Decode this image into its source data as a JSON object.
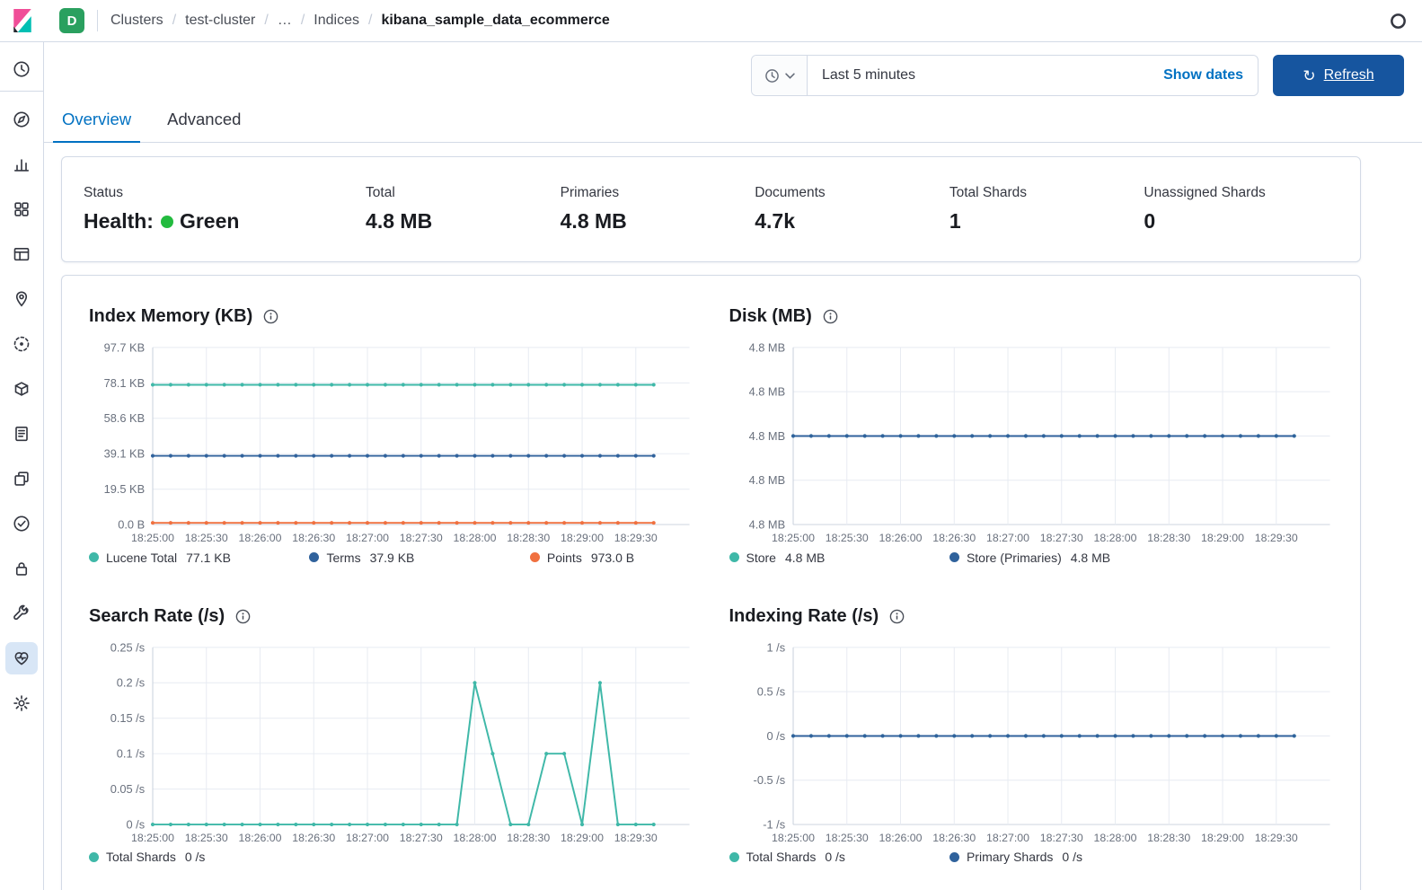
{
  "colors": {
    "accent": "#0071c2",
    "refresh_button": "#16559f",
    "space_badge": "#2aa05f",
    "health_green": "#23bb3f"
  },
  "header": {
    "space_badge": "D",
    "breadcrumbs": [
      {
        "label": "Clusters"
      },
      {
        "label": "test-cluster"
      },
      {
        "label": "…"
      },
      {
        "label": "Indices"
      },
      {
        "label": "kibana_sample_data_ecommerce",
        "current": true
      }
    ]
  },
  "sidebar": {
    "items": [
      {
        "id": "recently-viewed",
        "icon": "clock",
        "divider_after": true
      },
      {
        "id": "discover",
        "icon": "compass"
      },
      {
        "id": "visualize",
        "icon": "bar-chart"
      },
      {
        "id": "dashboard",
        "icon": "grid"
      },
      {
        "id": "canvas",
        "icon": "canvas"
      },
      {
        "id": "maps",
        "icon": "map-pin"
      },
      {
        "id": "machine-learning",
        "icon": "ml"
      },
      {
        "id": "apm",
        "icon": "package"
      },
      {
        "id": "logs",
        "icon": "document"
      },
      {
        "id": "metrics",
        "icon": "windows"
      },
      {
        "id": "uptime",
        "icon": "check-circle"
      },
      {
        "id": "security",
        "icon": "lock"
      },
      {
        "id": "dev-tools",
        "icon": "wrench"
      },
      {
        "id": "stack-monitoring",
        "icon": "pulse",
        "active": true
      },
      {
        "id": "management",
        "icon": "gear"
      }
    ]
  },
  "timebar": {
    "time_range": "Last 5 minutes",
    "show_dates": "Show dates",
    "refresh": "Refresh"
  },
  "tabs": [
    {
      "label": "Overview",
      "active": true
    },
    {
      "label": "Advanced",
      "active": false
    }
  ],
  "summary": [
    {
      "label": "Status",
      "prefix": "Health:",
      "value": "Green",
      "health": true
    },
    {
      "label": "Total",
      "value": "4.8 MB"
    },
    {
      "label": "Primaries",
      "value": "4.8 MB"
    },
    {
      "label": "Documents",
      "value": "4.7k"
    },
    {
      "label": "Total Shards",
      "value": "1"
    },
    {
      "label": "Unassigned Shards",
      "value": "0"
    }
  ],
  "chart_data": [
    {
      "id": "index-memory",
      "type": "line",
      "title": "Index Memory (KB)",
      "ylim": [
        0,
        97.7
      ],
      "y_ticks": [
        {
          "v": 97.7,
          "label": "97.7 KB"
        },
        {
          "v": 78.1,
          "label": "78.1 KB"
        },
        {
          "v": 58.6,
          "label": "58.6 KB"
        },
        {
          "v": 39.1,
          "label": "39.1 KB"
        },
        {
          "v": 19.5,
          "label": "19.5 KB"
        },
        {
          "v": 0,
          "label": "0.0 B"
        }
      ],
      "x_labels": [
        "18:25:00",
        "18:25:30",
        "18:26:00",
        "18:26:30",
        "18:27:00",
        "18:27:30",
        "18:28:00",
        "18:28:30",
        "18:29:00",
        "18:29:30"
      ],
      "points_per_series": 29,
      "series": [
        {
          "name": "Lucene Total",
          "legend_value": "77.1 KB",
          "color": "#3fb8a8",
          "values": 77.1
        },
        {
          "name": "Terms",
          "legend_value": "37.9 KB",
          "color": "#30629c",
          "values": 37.9
        },
        {
          "name": "Points",
          "legend_value": "973.0 B",
          "color": "#f0703f",
          "values": 0.95
        }
      ]
    },
    {
      "id": "disk",
      "type": "line",
      "title": "Disk (MB)",
      "ylim": [
        0,
        4
      ],
      "y_ticks": [
        {
          "v": 4,
          "label": "4.8 MB"
        },
        {
          "v": 3,
          "label": "4.8 MB"
        },
        {
          "v": 2,
          "label": "4.8 MB"
        },
        {
          "v": 1,
          "label": "4.8 MB"
        },
        {
          "v": 0,
          "label": "4.8 MB"
        }
      ],
      "x_labels": [
        "18:25:00",
        "18:25:30",
        "18:26:00",
        "18:26:30",
        "18:27:00",
        "18:27:30",
        "18:28:00",
        "18:28:30",
        "18:29:00",
        "18:29:30"
      ],
      "points_per_series": 29,
      "series": [
        {
          "name": "Store",
          "legend_value": "4.8 MB",
          "color": "#3fb8a8",
          "values": 2
        },
        {
          "name": "Store (Primaries)",
          "legend_value": "4.8 MB",
          "color": "#30629c",
          "values": 2
        }
      ]
    },
    {
      "id": "search-rate",
      "type": "line",
      "title": "Search Rate (/s)",
      "ylim": [
        0,
        0.25
      ],
      "y_ticks": [
        {
          "v": 0.25,
          "label": "0.25 /s"
        },
        {
          "v": 0.2,
          "label": "0.2 /s"
        },
        {
          "v": 0.15,
          "label": "0.15 /s"
        },
        {
          "v": 0.1,
          "label": "0.1 /s"
        },
        {
          "v": 0.05,
          "label": "0.05 /s"
        },
        {
          "v": 0,
          "label": "0 /s"
        }
      ],
      "x_labels": [
        "18:25:00",
        "18:25:30",
        "18:26:00",
        "18:26:30",
        "18:27:00",
        "18:27:30",
        "18:28:00",
        "18:28:30",
        "18:29:00",
        "18:29:30"
      ],
      "points_per_series": 29,
      "series": [
        {
          "name": "Total Shards",
          "legend_value": "0 /s",
          "color": "#3fb8a8",
          "values": [
            0,
            0,
            0,
            0,
            0,
            0,
            0,
            0,
            0,
            0,
            0,
            0,
            0,
            0,
            0,
            0,
            0,
            0,
            0.2,
            0.1,
            0,
            0,
            0.1,
            0.1,
            0,
            0.2,
            0,
            0,
            0
          ]
        }
      ]
    },
    {
      "id": "indexing-rate",
      "type": "line",
      "title": "Indexing Rate (/s)",
      "ylim": [
        -1,
        1
      ],
      "y_ticks": [
        {
          "v": 1,
          "label": "1 /s"
        },
        {
          "v": 0.5,
          "label": "0.5 /s"
        },
        {
          "v": 0,
          "label": "0 /s"
        },
        {
          "v": -0.5,
          "label": "-0.5 /s"
        },
        {
          "v": -1,
          "label": "-1 /s"
        }
      ],
      "x_labels": [
        "18:25:00",
        "18:25:30",
        "18:26:00",
        "18:26:30",
        "18:27:00",
        "18:27:30",
        "18:28:00",
        "18:28:30",
        "18:29:00",
        "18:29:30"
      ],
      "points_per_series": 29,
      "series": [
        {
          "name": "Total Shards",
          "legend_value": "0 /s",
          "color": "#3fb8a8",
          "values": 0
        },
        {
          "name": "Primary Shards",
          "legend_value": "0 /s",
          "color": "#30629c",
          "values": 0
        }
      ]
    }
  ]
}
